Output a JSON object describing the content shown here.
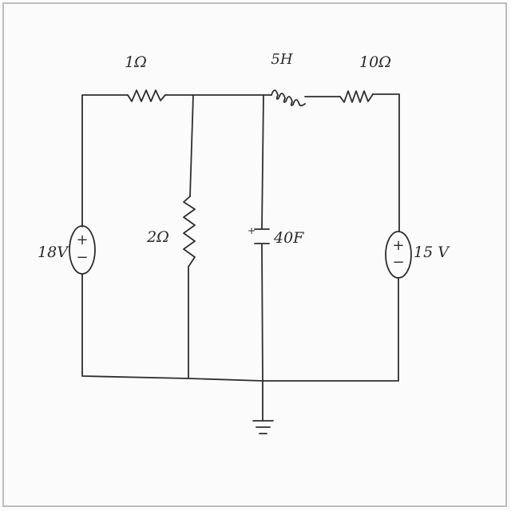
{
  "components": {
    "r1": {
      "label": "1Ω"
    },
    "r2": {
      "label": "2Ω"
    },
    "r3": {
      "label": "10Ω"
    },
    "inductor": {
      "label": "5H"
    },
    "capacitor": {
      "label": "40F"
    },
    "source_left": {
      "label": "18V",
      "plus": "+",
      "minus": "−"
    },
    "source_right": {
      "label": "15 V",
      "plus": "+",
      "minus": "−"
    }
  },
  "colors": {
    "ink": "#2e2e2e",
    "paper": "#fbfbfb"
  }
}
